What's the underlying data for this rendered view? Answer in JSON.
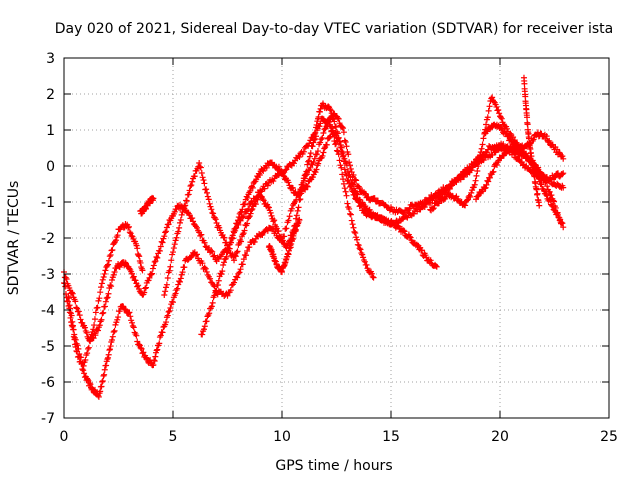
{
  "chart_data": {
    "type": "scatter",
    "title": "Day 020 of 2021, Sidereal Day-to-day VTEC variation (SDTVAR) for receiver ista",
    "xlabel": "GPS time / hours",
    "ylabel": "SDTVAR / TECUs",
    "xlim": [
      0,
      25
    ],
    "ylim": [
      -7,
      3
    ],
    "xticks": [
      0,
      5,
      10,
      15,
      20,
      25
    ],
    "yticks": [
      -7,
      -6,
      -5,
      -4,
      -3,
      -2,
      -1,
      0,
      1,
      2,
      3
    ],
    "grid": true,
    "marker": "+",
    "color": "#ff0000",
    "series": [
      {
        "name": "trace-1",
        "x": [
          0.0,
          0.3,
          0.6,
          1.0,
          1.3,
          1.6,
          1.9,
          2.2,
          2.6,
          3.0,
          3.4,
          3.8,
          4.1,
          4.4,
          4.8,
          5.2,
          5.6,
          6.0,
          6.5,
          7.0,
          7.5,
          8.0,
          8.5,
          9.0,
          9.5,
          10.0,
          10.5,
          11.0,
          11.5,
          12.0,
          12.4,
          12.8,
          13.2,
          13.6,
          14.0,
          14.5,
          15.0,
          15.5,
          16.0,
          16.5,
          17.0,
          17.5,
          18.0,
          18.5,
          19.0,
          19.5,
          20.0,
          20.5,
          21.0,
          21.5,
          22.0,
          22.5,
          22.9
        ],
        "y": [
          -3.2,
          -4.2,
          -5.2,
          -5.9,
          -6.2,
          -6.4,
          -5.6,
          -4.8,
          -3.9,
          -4.1,
          -4.9,
          -5.4,
          -5.5,
          -4.8,
          -4.1,
          -3.4,
          -2.6,
          -2.4,
          -2.9,
          -3.5,
          -3.6,
          -3.0,
          -2.2,
          -1.9,
          -1.7,
          -2.1,
          -1.1,
          -0.4,
          0.2,
          1.1,
          1.5,
          1.0,
          -0.2,
          -0.7,
          -0.9,
          -1.0,
          -1.2,
          -1.3,
          -1.1,
          -1.0,
          -0.8,
          -0.6,
          -0.4,
          -0.1,
          0.2,
          0.5,
          0.6,
          0.5,
          0.3,
          0.1,
          -0.3,
          -0.5,
          -0.6
        ]
      },
      {
        "name": "trace-2",
        "x": [
          0.0,
          0.4,
          0.8,
          1.2,
          1.6,
          2.0,
          2.4,
          2.8,
          3.2,
          3.6,
          4.0,
          4.4,
          4.8,
          5.2,
          5.6,
          6.0,
          6.5,
          7.0,
          7.5,
          8.0,
          8.5,
          9.0,
          9.5,
          10.0,
          10.5,
          11.0,
          11.5,
          11.8,
          12.2,
          12.6,
          13.0,
          13.4,
          13.8,
          14.2,
          14.6,
          15.0,
          15.5,
          16.0,
          16.5,
          17.0,
          17.5,
          18.0,
          18.5,
          19.0,
          19.5,
          20.0,
          20.5,
          21.0,
          21.5,
          22.0,
          22.5,
          22.9
        ],
        "y": [
          -3.0,
          -3.6,
          -4.3,
          -4.9,
          -4.5,
          -3.6,
          -2.8,
          -2.7,
          -3.1,
          -3.6,
          -3.0,
          -2.3,
          -1.6,
          -1.1,
          -1.2,
          -1.6,
          -2.2,
          -2.6,
          -2.3,
          -1.6,
          -1.1,
          -0.7,
          -0.4,
          -0.2,
          0.1,
          0.4,
          0.9,
          1.7,
          1.6,
          0.8,
          -0.4,
          -0.9,
          -1.3,
          -1.4,
          -1.5,
          -1.6,
          -1.5,
          -1.3,
          -1.1,
          -0.9,
          -0.7,
          -0.4,
          -0.2,
          0.1,
          0.3,
          0.5,
          0.4,
          0.1,
          -0.2,
          -0.4,
          -0.3,
          -0.2
        ]
      },
      {
        "name": "trace-3",
        "x": [
          0.2,
          0.5,
          0.9,
          1.3,
          1.7,
          2.1,
          2.5,
          2.9,
          3.3,
          3.6
        ],
        "y": [
          -3.6,
          -4.8,
          -5.6,
          -4.6,
          -3.4,
          -2.5,
          -1.8,
          -1.6,
          -2.2,
          -2.9
        ]
      },
      {
        "name": "trace-4",
        "x": [
          3.5,
          3.7,
          3.9,
          4.1
        ],
        "y": [
          -1.3,
          -1.2,
          -1.0,
          -0.9
        ]
      },
      {
        "name": "trace-5",
        "x": [
          4.6,
          5.0,
          5.4,
          5.8,
          6.2,
          6.6,
          7.0,
          7.4,
          7.8,
          8.2,
          8.6,
          9.0,
          9.4,
          9.8,
          10.2,
          10.6,
          11.0,
          11.4,
          11.8,
          12.2,
          12.6,
          13.0,
          13.4,
          13.8,
          14.2
        ],
        "y": [
          -3.6,
          -2.4,
          -1.4,
          -0.6,
          0.1,
          -0.9,
          -1.6,
          -2.1,
          -2.6,
          -1.9,
          -1.2,
          -0.8,
          -1.2,
          -1.8,
          -2.3,
          -1.6,
          -0.4,
          0.6,
          1.3,
          1.2,
          0.3,
          -1.0,
          -2.0,
          -2.7,
          -3.1
        ]
      },
      {
        "name": "trace-6",
        "x": [
          6.3,
          6.7,
          7.1,
          7.5,
          7.9,
          8.3,
          8.7,
          9.1,
          9.5,
          9.9,
          10.3,
          10.7,
          11.1,
          11.5,
          11.9,
          12.3,
          12.7,
          13.1,
          13.5,
          13.9,
          14.3,
          14.7,
          15.1,
          15.5,
          15.9,
          16.3,
          16.7,
          17.1
        ],
        "y": [
          -4.7,
          -4.0,
          -3.2,
          -2.4,
          -1.6,
          -1.0,
          -0.5,
          -0.1,
          0.1,
          -0.1,
          -0.5,
          -0.8,
          -0.6,
          -0.2,
          0.4,
          1.0,
          0.6,
          -0.3,
          -0.9,
          -1.2,
          -1.4,
          -1.5,
          -1.6,
          -1.8,
          -2.0,
          -2.3,
          -2.6,
          -2.8
        ]
      },
      {
        "name": "trace-7",
        "x": [
          9.4,
          9.6,
          9.8,
          10.0,
          10.2,
          10.4,
          10.6,
          10.8
        ],
        "y": [
          -2.2,
          -2.5,
          -2.8,
          -2.9,
          -2.6,
          -2.2,
          -1.8,
          -1.5
        ]
      },
      {
        "name": "trace-8",
        "x": [
          16.8,
          17.2,
          17.6,
          18.0,
          18.4,
          18.8,
          19.2,
          19.6,
          20.0,
          20.4,
          20.8,
          21.2,
          21.6,
          22.0,
          22.4,
          22.8
        ],
        "y": [
          -1.2,
          -1.0,
          -0.8,
          -0.9,
          -1.1,
          -0.6,
          0.6,
          1.9,
          1.4,
          0.9,
          0.6,
          0.3,
          0.0,
          -0.3,
          -0.9,
          -1.6
        ]
      },
      {
        "name": "trace-9",
        "x": [
          18.9,
          19.3,
          19.7,
          20.1,
          20.5,
          20.9,
          21.3,
          21.7,
          22.1,
          22.5,
          22.9
        ],
        "y": [
          -0.9,
          -0.6,
          -0.1,
          0.3,
          0.5,
          0.4,
          0.2,
          -0.3,
          -0.8,
          -1.2,
          -1.7
        ]
      },
      {
        "name": "trace-10",
        "x": [
          19.3,
          19.7,
          20.1,
          20.5,
          20.9,
          21.3,
          21.7,
          22.1,
          22.5,
          22.9
        ],
        "y": [
          0.9,
          1.2,
          1.0,
          0.7,
          0.5,
          0.6,
          0.9,
          0.8,
          0.5,
          0.2
        ]
      },
      {
        "name": "trace-11",
        "x": [
          21.1,
          21.2,
          21.3,
          21.4,
          21.6,
          21.8
        ],
        "y": [
          2.4,
          1.6,
          0.9,
          0.4,
          -0.4,
          -1.1
        ]
      }
    ]
  }
}
